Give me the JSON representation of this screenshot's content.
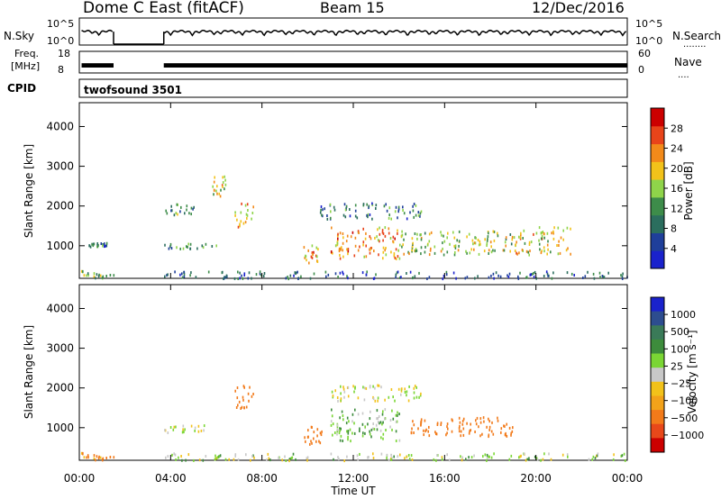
{
  "header": {
    "station": "Dome C East (fitACF)",
    "beam": "Beam 15",
    "date": "12/Dec/2016"
  },
  "nsky_panel": {
    "left_label": "N.Sky",
    "right_label": "N.Search",
    "left_ticks": [
      "10^5",
      "10^0"
    ],
    "right_ticks": [
      "10^5",
      "10^0"
    ],
    "right_legend_dots": "........"
  },
  "freq_panel": {
    "left_label_line1": "Freq.",
    "left_label_line2": "[MHz]",
    "right_label": "Nave",
    "left_ticks": [
      "18",
      "8"
    ],
    "right_ticks": [
      "60",
      "0"
    ],
    "right_legend_dots": "...."
  },
  "cpid": {
    "label": "CPID",
    "value": "twofsound 3501"
  },
  "x_axis": {
    "ticks": [
      "00:00",
      "04:00",
      "08:00",
      "12:00",
      "16:00",
      "20:00",
      "00:00"
    ],
    "label": "Time UT"
  },
  "power_panel": {
    "ylabel": "Slant Range [km]",
    "yticks": [
      "1000",
      "2000",
      "3000",
      "4000"
    ],
    "colorbar_label": "Power [dB]",
    "colorbar_ticks": [
      "4",
      "8",
      "12",
      "16",
      "20",
      "24",
      "28"
    ]
  },
  "velocity_panel": {
    "ylabel": "Slant Range [km]",
    "yticks": [
      "1000",
      "2000",
      "3000",
      "4000"
    ],
    "colorbar_label": "Velocity [m s⁻¹]",
    "colorbar_ticks": [
      "1000",
      "500",
      "100",
      "25",
      "−25",
      "−100",
      "−500",
      "−1000"
    ]
  },
  "chart_data": [
    {
      "type": "line",
      "title": "N.Sky",
      "x_unit": "hours UT",
      "xlim": [
        0,
        24
      ],
      "y_scale": "log",
      "ylim": [
        1,
        100000
      ],
      "segments": [
        {
          "x": [
            0.1,
            1.5
          ],
          "y": [
            300,
            300
          ]
        },
        {
          "x": [
            3.7,
            24.0
          ],
          "y": [
            300,
            300
          ]
        }
      ],
      "gap_hours": [
        1.5,
        3.7
      ]
    },
    {
      "type": "line",
      "title": "Freq.",
      "x_unit": "hours UT",
      "xlim": [
        0,
        24
      ],
      "ylim": [
        8,
        18
      ],
      "y_unit": "MHz",
      "segments": [
        {
          "x": [
            0.1,
            1.5
          ],
          "y": [
            11.5,
            11.5
          ]
        },
        {
          "x": [
            3.7,
            24.0
          ],
          "y": [
            11.5,
            11.5
          ]
        }
      ]
    },
    {
      "type": "heatmap",
      "title": "Power [dB]",
      "x_unit": "hours UT",
      "xlim": [
        0,
        24
      ],
      "ylim": [
        180,
        4600
      ],
      "y_unit": "km",
      "color_range": [
        0,
        30
      ],
      "regions": [
        {
          "t": [
            0.0,
            1.5
          ],
          "r": [
            200,
            400
          ],
          "value": 14
        },
        {
          "t": [
            0.4,
            1.2
          ],
          "r": [
            1000,
            1100
          ],
          "value": 8
        },
        {
          "t": [
            3.7,
            6.0
          ],
          "r": [
            950,
            1080
          ],
          "value": 10
        },
        {
          "t": [
            3.7,
            5.0
          ],
          "r": [
            1800,
            2100
          ],
          "value": 12
        },
        {
          "t": [
            5.8,
            6.4
          ],
          "r": [
            2200,
            2800
          ],
          "value": 18
        },
        {
          "t": [
            6.8,
            7.6
          ],
          "r": [
            1500,
            2100
          ],
          "value": 20
        },
        {
          "t": [
            9.8,
            10.6
          ],
          "r": [
            600,
            1100
          ],
          "value": 22
        },
        {
          "t": [
            11.0,
            14.0
          ],
          "r": [
            700,
            1500
          ],
          "value": 22
        },
        {
          "t": [
            10.5,
            15.0
          ],
          "r": [
            1700,
            2100
          ],
          "value": 8
        },
        {
          "t": [
            14.0,
            19.0
          ],
          "r": [
            800,
            1400
          ],
          "value": 16
        },
        {
          "t": [
            19.0,
            21.5
          ],
          "r": [
            800,
            1500
          ],
          "value": 18
        },
        {
          "t": [
            3.7,
            24.0
          ],
          "r": [
            200,
            380
          ],
          "value": 6
        }
      ]
    },
    {
      "type": "heatmap",
      "title": "Velocity [m s⁻¹]",
      "x_unit": "hours UT",
      "xlim": [
        0,
        24
      ],
      "ylim": [
        180,
        4600
      ],
      "y_unit": "km",
      "regions": [
        {
          "t": [
            0.0,
            1.5
          ],
          "r": [
            200,
            400
          ],
          "velocity": -150
        },
        {
          "t": [
            3.7,
            5.5
          ],
          "r": [
            900,
            1100
          ],
          "velocity": 0
        },
        {
          "t": [
            6.8,
            7.6
          ],
          "r": [
            1500,
            2100
          ],
          "velocity": -200
        },
        {
          "t": [
            9.8,
            10.6
          ],
          "r": [
            600,
            1100
          ],
          "velocity": -300
        },
        {
          "t": [
            11.0,
            14.0
          ],
          "r": [
            700,
            1500
          ],
          "velocity": 80
        },
        {
          "t": [
            14.5,
            19.0
          ],
          "r": [
            800,
            1300
          ],
          "velocity": -400
        },
        {
          "t": [
            11.0,
            15.0
          ],
          "r": [
            1700,
            2100
          ],
          "velocity": 0
        },
        {
          "t": [
            3.7,
            24.0
          ],
          "r": [
            200,
            380
          ],
          "velocity": 30
        }
      ]
    }
  ],
  "colors": {
    "power_scale": [
      "#1a22cc",
      "#1f3f9a",
      "#2b6e5e",
      "#3d8c4a",
      "#8fd44a",
      "#f2c21a",
      "#f28a1a",
      "#e8441a",
      "#cc0000"
    ],
    "velocity_scale": [
      "#1a22cc",
      "#2d4d8f",
      "#3a7a58",
      "#3d8c3c",
      "#7ad634",
      "#c8c8c8",
      "#f2c21a",
      "#f2a21a",
      "#f27a1a",
      "#e8481a",
      "#cc0000"
    ]
  }
}
